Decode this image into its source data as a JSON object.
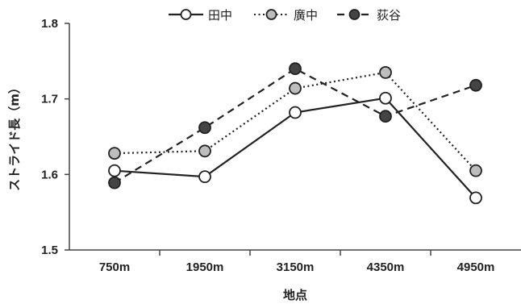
{
  "chart_data": {
    "type": "line",
    "title": "",
    "xlabel": "地点",
    "ylabel": "ストライド長（m）",
    "categories": [
      "750m",
      "1950m",
      "3150m",
      "4350m",
      "4950m"
    ],
    "ylim": [
      1.5,
      1.8
    ],
    "yticks": [
      "1.5",
      "1.6",
      "1.7",
      "1.8"
    ],
    "grid": false,
    "legend_position": "top-center",
    "series": [
      {
        "name": "田中",
        "values": [
          1.605,
          1.597,
          1.682,
          1.701,
          1.569
        ],
        "line_style": "solid",
        "marker_fill": "#ffffff",
        "color": "#222222"
      },
      {
        "name": "廣中",
        "values": [
          1.628,
          1.631,
          1.714,
          1.735,
          1.605
        ],
        "line_style": "dotted",
        "marker_fill": "#bdbdbd",
        "color": "#222222"
      },
      {
        "name": "荻谷",
        "values": [
          1.589,
          1.662,
          1.74,
          1.677,
          1.718
        ],
        "line_style": "dashed",
        "marker_fill": "#444444",
        "color": "#222222"
      }
    ]
  }
}
